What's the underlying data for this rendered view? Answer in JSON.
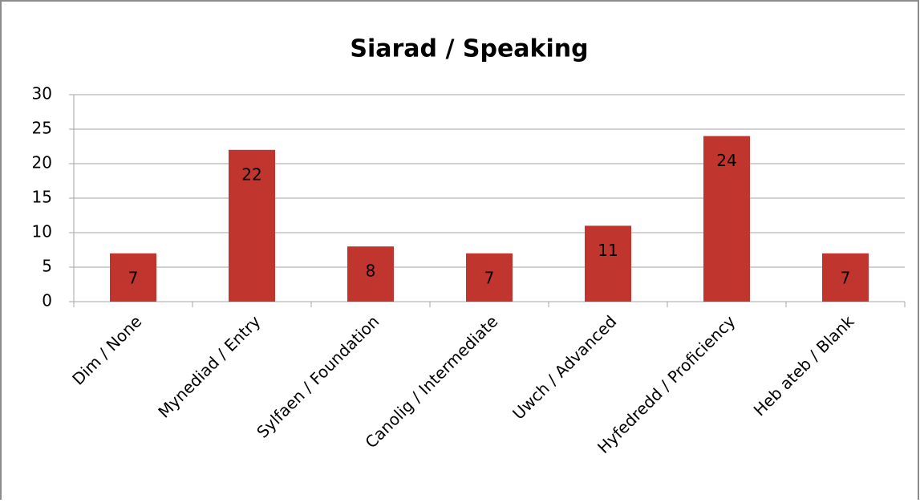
{
  "chart_data": {
    "type": "bar",
    "title": "Siarad / Speaking",
    "categories": [
      "Dim / None",
      "Mynediad / Entry",
      "Sylfaen / Foundation",
      "Canolig / Intermediate",
      "Uwch / Advanced",
      "Hyfedredd / Proficiency",
      "Heb ateb / Blank"
    ],
    "values": [
      7,
      22,
      8,
      7,
      11,
      24,
      7
    ],
    "color": "#c0362f",
    "ylim": [
      0,
      30
    ],
    "yticks": [
      0,
      5,
      10,
      15,
      20,
      25,
      30
    ],
    "grid": true
  }
}
